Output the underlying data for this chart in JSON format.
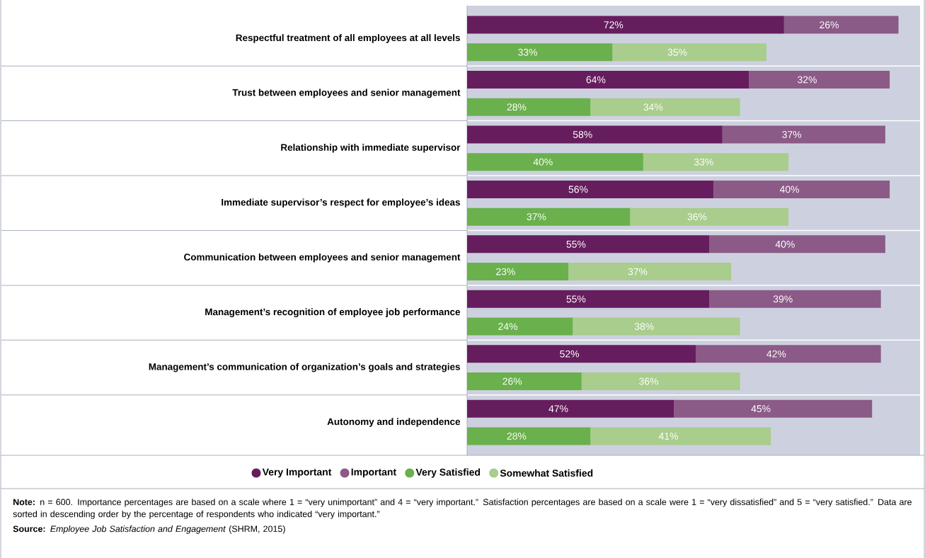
{
  "chart_data": {
    "type": "bar",
    "orientation": "horizontal",
    "stacked": true,
    "legend": "bottom",
    "grid": "y",
    "categories": [
      "Respectful treatment of all employees at all levels",
      null,
      "Trust between employees and senior management",
      null,
      "Relationship with immediate supervisor",
      null,
      "Immediate supervisor’s respect for employee’s ideas",
      null,
      "Communication between employees and senior management",
      null,
      "Management’s recognition of employee job performance",
      null,
      "Management’s communication of organization’s goals and strategies",
      null,
      "Autonomy and independence",
      null
    ],
    "series": [
      {
        "name": "Very Important",
        "color": "#661d5d",
        "values": [
          72,
          null,
          64,
          null,
          58,
          null,
          56,
          null,
          55,
          null,
          55,
          null,
          52,
          null,
          47,
          null
        ],
        "value_labels": [
          "72%",
          null,
          "64%",
          null,
          "58%",
          null,
          "56%",
          null,
          "55%",
          null,
          "55%",
          null,
          "52%",
          null,
          "47%",
          null
        ]
      },
      {
        "name": "Important",
        "color": "#8b5a87",
        "values": [
          26,
          null,
          32,
          null,
          37,
          null,
          40,
          null,
          40,
          null,
          39,
          null,
          42,
          null,
          45,
          null
        ],
        "value_labels": [
          "26%",
          null,
          "32%",
          null,
          "37%",
          null,
          "40%",
          null,
          "40%",
          null,
          "39%",
          null,
          "42%",
          null,
          "45%",
          null
        ]
      },
      {
        "name": "Very Satisfied",
        "color": "#6ab04c",
        "values": [
          null,
          33,
          null,
          28,
          null,
          40,
          null,
          37,
          null,
          23,
          null,
          24,
          null,
          26,
          null,
          28
        ],
        "value_labels": [
          null,
          "33%",
          null,
          "28%",
          null,
          "40%",
          null,
          "37%",
          null,
          "23%",
          null,
          "24%",
          null,
          "26%",
          null,
          "28%"
        ]
      },
      {
        "name": "Somewhat Satisfied",
        "color": "#a8cd8c",
        "values": [
          null,
          35,
          null,
          34,
          null,
          33,
          null,
          36,
          null,
          37,
          null,
          38,
          null,
          36,
          null,
          41
        ],
        "value_labels": [
          null,
          "35%",
          null,
          "34%",
          null,
          "33%",
          null,
          "36%",
          null,
          "37%",
          null,
          "38%",
          null,
          "36%",
          null,
          "41%"
        ]
      }
    ],
    "annotations": [
      "**Note:** n = 600. Importance percentages are based on a scale where 1 = “very unimportant” and 4 = “very important.” Satisfaction percentages are based on a scale were 1 = “very dissatisfied” and 5 = “very satisfied.” Data are sorted in descending order by the percentage of respondents who indicated “very important.”",
      "**Source:** *Employee Job Satisfaction and Engagement* (SHRM, 2015)"
    ]
  }
}
